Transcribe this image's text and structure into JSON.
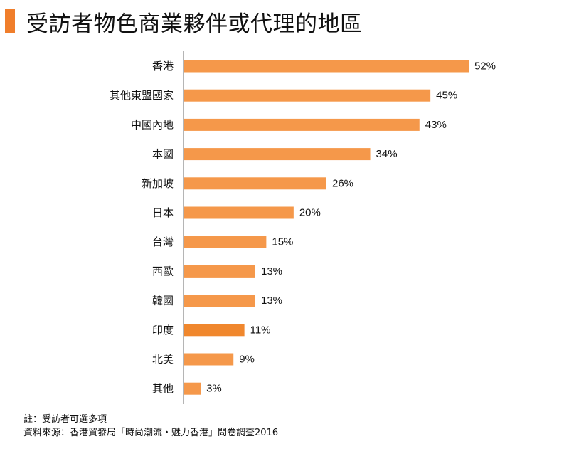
{
  "title": "受訪者物色商業夥伴或代理的地區",
  "colors": {
    "accent": "#F07E2B",
    "bar": "#F5984A",
    "bar_highlight": "#F0872D",
    "text": "#111111",
    "axis": "#6b6b6b"
  },
  "chart_data": {
    "type": "bar",
    "orientation": "horizontal",
    "title": "受訪者物色商業夥伴或代理的地區",
    "categories": [
      "香港",
      "其他東盟國家",
      "中國內地",
      "本國",
      "新加坡",
      "日本",
      "台灣",
      "西歐",
      "韓國",
      "印度",
      "北美",
      "其他"
    ],
    "values": [
      52,
      45,
      43,
      34,
      26,
      20,
      15,
      13,
      13,
      11,
      9,
      3
    ],
    "labels": [
      "52%",
      "45%",
      "43%",
      "34%",
      "26%",
      "20%",
      "15%",
      "13%",
      "13%",
      "11%",
      "9%",
      "3%"
    ],
    "highlight": [
      "印度"
    ],
    "unit": "%",
    "xlabel": "",
    "ylabel": "",
    "xlim": [
      0,
      52
    ],
    "grid": false,
    "legend": "none"
  },
  "notes": {
    "note": "註：受訪者可選多項",
    "source": "資料來源：香港貿發局「時尚潮流・魅力香港」問卷調查2016"
  }
}
